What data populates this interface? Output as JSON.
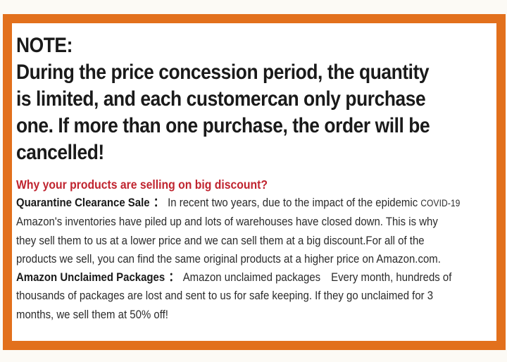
{
  "colors": {
    "outer_background": "#FCFAF5",
    "panel_background": "#FFFFFF",
    "border_orange": "#E2701C",
    "note_text": "#1A1A1A",
    "question_red": "#C0242F",
    "body_text": "#2B2B2B"
  },
  "note": {
    "title": "NOTE:",
    "lines": [
      "During the price concession period, the quantity",
      "is limited, and each customercan only purchase",
      "one. If more than one purchase, the order will be",
      "cancelled!"
    ]
  },
  "discount_section": {
    "question": "Why your products are selling on big discount?",
    "reasons": [
      {
        "label": "Quarantine Clearance Sale",
        "colon": "：",
        "first_line": "In recent two years, due to the impact of the epidemic",
        "covid_tag": "COVID-19",
        "lines": [
          "Amazon's inventories have piled up and lots of warehouses have closed down. This is why",
          "they sell them to us at a lower price and we can sell them at a big discount.For all of the",
          "products we sell, you can find the same original products at a higher price on Amazon.com."
        ]
      },
      {
        "label": "Amazon Unclaimed Packages",
        "colon": "：",
        "first_line": "Amazon unclaimed packages Every month, hundreds of",
        "lines": [
          "thousands of packages are lost and sent to us for safe keeping. If they go unclaimed for 3",
          "months, we sell them at 50% off!"
        ]
      }
    ]
  }
}
